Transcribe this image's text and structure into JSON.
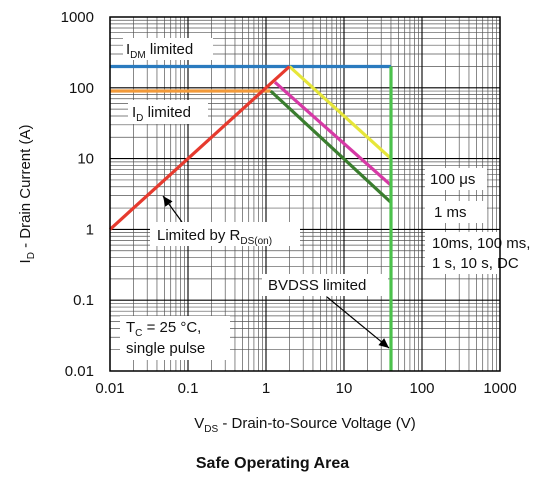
{
  "chart_data": {
    "type": "line",
    "title": "Safe Operating Area",
    "xlabel": {
      "main": "V",
      "sub": "DS",
      "rest": " - Drain-to-Source Voltage (V)"
    },
    "ylabel": {
      "main": "I",
      "sub": "D",
      "rest": " - Drain Current (A)"
    },
    "x_scale": "log",
    "y_scale": "log",
    "xlim": [
      0.01,
      1000
    ],
    "ylim": [
      0.01,
      1000
    ],
    "x_ticks": [
      "0.01",
      "0.1",
      "1",
      "10",
      "100",
      "1000"
    ],
    "y_ticks": [
      "0.01",
      "0.1",
      "1",
      "10",
      "100",
      "1000"
    ],
    "grid": true,
    "series": [
      {
        "color": "#e63a2e",
        "points": [
          [
            0.01,
            1
          ],
          [
            2,
            200
          ]
        ]
      },
      {
        "color": "#2a7bbf",
        "points": [
          [
            0.01,
            200
          ],
          [
            40,
            200
          ]
        ]
      },
      {
        "color": "#f29a3a",
        "points": [
          [
            0.01,
            90
          ],
          [
            1.15,
            90
          ]
        ]
      },
      {
        "color": "#e6e63a",
        "points": [
          [
            2,
            200
          ],
          [
            40,
            10
          ]
        ]
      },
      {
        "color": "#d63aa6",
        "points": [
          [
            1.3,
            120
          ],
          [
            40,
            4.2
          ]
        ]
      },
      {
        "color": "#3a7d2e",
        "points": [
          [
            1.15,
            90
          ],
          [
            40,
            2.4
          ]
        ]
      },
      {
        "color": "#4cc24c",
        "points": [
          [
            40,
            0.01
          ],
          [
            40,
            200
          ]
        ]
      }
    ],
    "annotations": {
      "idm": {
        "main": "I",
        "sub": "DM",
        "rest": " limited"
      },
      "id": {
        "main": "I",
        "sub": "D",
        "rest": " limited"
      },
      "rds": {
        "main": "Limited by R",
        "sub": "DS(on)"
      },
      "us100": "100 μs",
      "ms1": "1 ms",
      "dc_lines": [
        "10ms, 100 ms,",
        "1 s, 10 s, DC"
      ],
      "bvdss": "BVDSS limited",
      "tc_line1": {
        "main": "T",
        "sub": "C",
        "rest": " = 25 °C,"
      },
      "tc_line2": "single pulse"
    }
  }
}
